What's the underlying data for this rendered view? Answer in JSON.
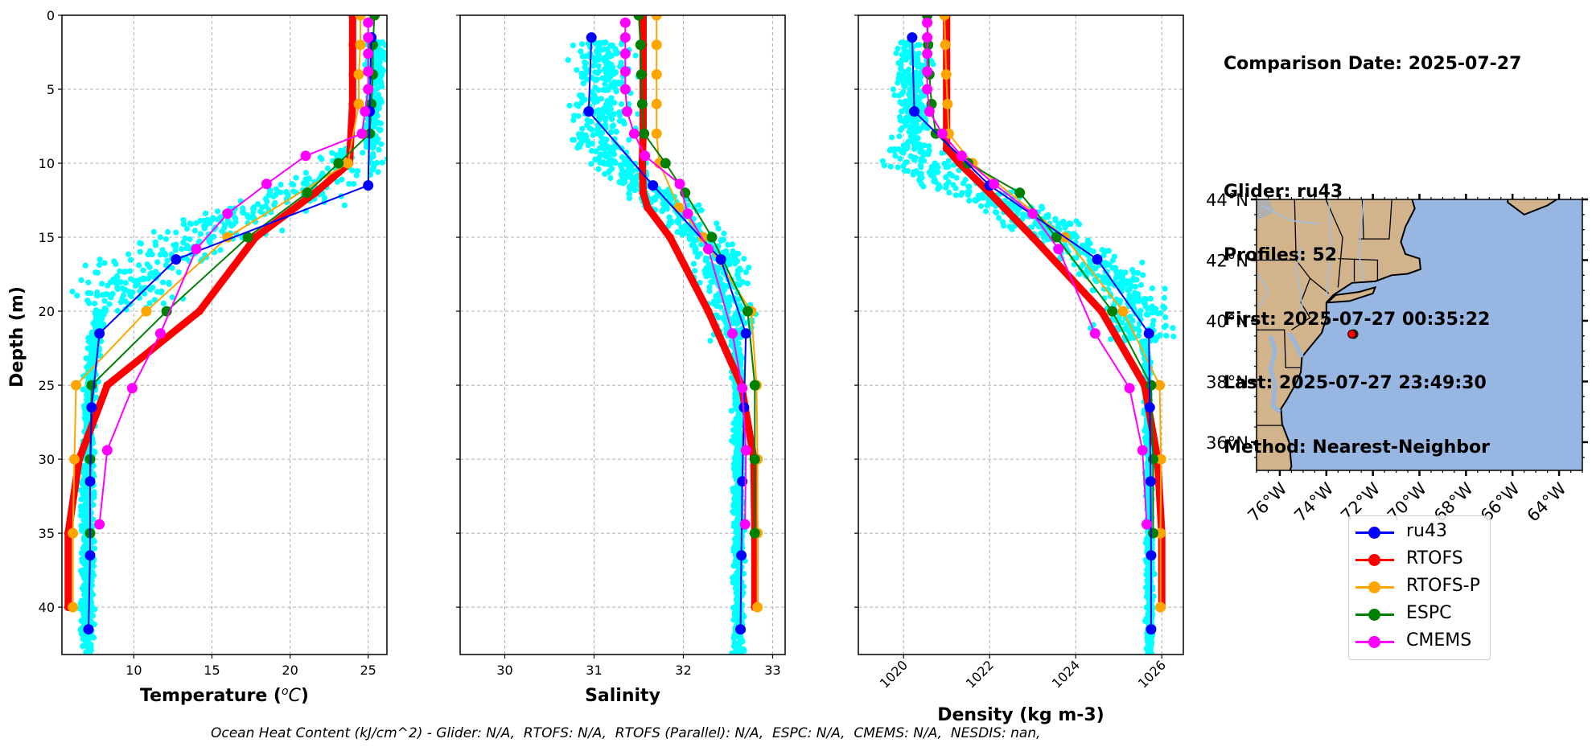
{
  "info_panel": {
    "comparison_date": "Comparison Date: 2025-07-27",
    "glider": "Glider: ru43",
    "profiles": "Profiles: 52",
    "first": "First: 2025-07-27 00:35:22",
    "last": "Last: 2025-07-27 23:49:30",
    "method": "Method: Nearest-Neighbor"
  },
  "footer": {
    "ohc_text": "Ocean Heat Content (kJ/cm^2) - Glider: N/A,  RTOFS: N/A,  RTOFS (Parallel): N/A,  ESPC: N/A,  CMEMS: N/A,  NESDIS: nan,"
  },
  "colors": {
    "ru43": "#0000ff",
    "RTOFS": "#ff0000",
    "RTOFS-P": "#ffa500",
    "ESPC": "#008000",
    "CMEMS": "#ff00ff",
    "glider_scatter": "#00ffff",
    "land": "#d2b48c",
    "ocean": "#97b6e1",
    "rivers": "#a0c0e8",
    "grid": "#b0b0b0"
  },
  "legend": [
    {
      "label": "ru43",
      "key": "ru43"
    },
    {
      "label": "RTOFS",
      "key": "RTOFS"
    },
    {
      "label": "RTOFS-P",
      "key": "RTOFS-P"
    },
    {
      "label": "ESPC",
      "key": "ESPC"
    },
    {
      "label": "CMEMS",
      "key": "CMEMS"
    }
  ],
  "chart_data": [
    {
      "type": "line",
      "title": "",
      "xlabel": "Temperature (°C)",
      "ylabel": "Depth (m)",
      "xlim": [
        5.4,
        26.2
      ],
      "ylim": [
        43.2,
        0
      ],
      "y_inverted": true,
      "grid": true,
      "xticks": [
        10,
        15,
        20,
        25
      ],
      "yticks": [
        0,
        5,
        10,
        15,
        20,
        25,
        30,
        35,
        40
      ],
      "series": [
        {
          "name": "ru43",
          "x": [
            25.2,
            25.1,
            25.0,
            12.7,
            7.8,
            7.3,
            7.2,
            7.2,
            7.1
          ],
          "y": [
            1.5,
            6.5,
            11.5,
            16.5,
            21.5,
            26.5,
            31.5,
            36.5,
            41.5
          ]
        },
        {
          "name": "RTOFS",
          "x": [
            24.0,
            24.0,
            24.0,
            24.0,
            23.8,
            21.6,
            17.8,
            14.2,
            8.3,
            6.5,
            5.8,
            5.8
          ],
          "y": [
            0,
            2,
            4,
            6,
            10,
            12,
            15,
            20,
            25,
            30,
            35,
            40
          ],
          "thick": true
        },
        {
          "name": "RTOFS-P",
          "x": [
            24.5,
            24.5,
            24.4,
            24.4,
            23.7,
            16.0,
            10.8,
            6.3,
            6.2,
            6.1,
            6.1
          ],
          "y": [
            0,
            2,
            4,
            6,
            10,
            15,
            20,
            25,
            30,
            35,
            40
          ]
        },
        {
          "name": "ESPC",
          "x": [
            25.4,
            25.3,
            25.3,
            25.2,
            25.1,
            23.1,
            21.1,
            17.3,
            12.1,
            7.3,
            7.2,
            7.2
          ],
          "y": [
            0,
            2,
            4,
            6,
            8,
            10,
            12,
            15,
            20,
            25,
            30,
            35
          ]
        },
        {
          "name": "CMEMS",
          "x": [
            25.0,
            25.0,
            25.0,
            25.0,
            25.0,
            24.8,
            24.6,
            21.0,
            18.5,
            16.0,
            14.0,
            11.7,
            9.9,
            8.3,
            7.8
          ],
          "y": [
            0.5,
            1.5,
            2.6,
            3.8,
            5.0,
            6.5,
            8.0,
            9.5,
            11.4,
            13.4,
            15.8,
            21.5,
            25.2,
            29.4,
            34.4
          ]
        }
      ],
      "glider_scatter": {
        "name": "ru43 profiles (cyan)",
        "count_note": "cloud of points following ru43 profile"
      }
    },
    {
      "type": "line",
      "title": "",
      "xlabel": "Salinity",
      "ylabel": "",
      "xlim": [
        29.5,
        33.14
      ],
      "ylim": [
        43.2,
        0
      ],
      "y_inverted": true,
      "grid": true,
      "xticks": [
        30,
        31,
        32,
        33
      ],
      "yticks": [
        0,
        5,
        10,
        15,
        20,
        25,
        30,
        35,
        40
      ],
      "series": [
        {
          "name": "ru43",
          "x": [
            30.97,
            30.94,
            31.66,
            32.42,
            32.7,
            32.68,
            32.66,
            32.65,
            32.64
          ],
          "y": [
            1.5,
            6.5,
            11.5,
            16.5,
            21.5,
            26.5,
            31.5,
            36.5,
            41.5
          ]
        },
        {
          "name": "RTOFS",
          "x": [
            31.55,
            31.55,
            31.55,
            31.55,
            31.55,
            31.54,
            31.55,
            31.6,
            31.85,
            32.28,
            32.65,
            32.79,
            32.8,
            32.8
          ],
          "y": [
            0,
            2,
            4,
            6,
            8,
            10,
            12,
            13,
            15,
            20,
            25,
            30,
            35,
            40
          ],
          "thick": true
        },
        {
          "name": "RTOFS-P",
          "x": [
            31.7,
            31.7,
            31.7,
            31.7,
            31.7,
            31.73,
            31.95,
            32.22,
            32.76,
            32.82,
            32.83,
            32.83,
            32.83
          ],
          "y": [
            0,
            2,
            4,
            6,
            8,
            10,
            13,
            15,
            20,
            25,
            30,
            35,
            40
          ]
        },
        {
          "name": "ESPC",
          "x": [
            31.5,
            31.52,
            31.53,
            31.54,
            31.56,
            31.8,
            32.02,
            32.32,
            32.72,
            32.8,
            32.8,
            32.8
          ],
          "y": [
            0,
            2,
            4,
            6,
            8,
            10,
            12,
            15,
            20,
            25,
            30,
            35
          ]
        },
        {
          "name": "CMEMS",
          "x": [
            31.35,
            31.35,
            31.35,
            31.35,
            31.35,
            31.37,
            31.45,
            31.57,
            31.96,
            32.05,
            32.28,
            32.55,
            32.66,
            32.7,
            32.69
          ],
          "y": [
            0.5,
            1.5,
            2.6,
            3.8,
            5.0,
            6.5,
            8.0,
            9.5,
            11.4,
            13.4,
            15.8,
            21.5,
            25.2,
            29.4,
            34.4
          ]
        }
      ]
    },
    {
      "type": "line",
      "title": "",
      "xlabel": "Density (kg m-3)",
      "ylabel": "",
      "xlim": [
        1018.95,
        1026.5
      ],
      "ylim": [
        43.2,
        0
      ],
      "y_inverted": true,
      "grid": true,
      "xticks": [
        1020,
        1022,
        1024,
        1026
      ],
      "xtick_rotation": 45,
      "yticks": [
        0,
        5,
        10,
        15,
        20,
        25,
        30,
        35,
        40
      ],
      "series": [
        {
          "name": "ru43",
          "x": [
            1020.2,
            1020.25,
            1022.0,
            1024.5,
            1025.7,
            1025.72,
            1025.74,
            1025.75,
            1025.75
          ],
          "y": [
            1.5,
            6.5,
            11.5,
            16.5,
            21.5,
            26.5,
            31.5,
            36.5,
            41.5
          ]
        },
        {
          "name": "RTOFS",
          "x": [
            1021.0,
            1021.0,
            1021.0,
            1021.0,
            1021.0,
            1021.0,
            1021.3,
            1022.0,
            1023.0,
            1024.6,
            1025.6,
            1025.9,
            1026.0,
            1026.0
          ],
          "y": [
            0,
            2,
            4,
            6,
            8,
            9,
            10,
            12,
            15,
            20,
            25,
            30,
            35,
            40
          ],
          "thick": true
        },
        {
          "name": "RTOFS-P",
          "x": [
            1020.95,
            1020.97,
            1020.99,
            1021.02,
            1021.05,
            1021.6,
            1023.75,
            1025.1,
            1025.95,
            1025.98,
            1025.97,
            1025.97
          ],
          "y": [
            0,
            2,
            4,
            6,
            8,
            10,
            15,
            20,
            25,
            30,
            35,
            40
          ]
        },
        {
          "name": "ESPC",
          "x": [
            1020.55,
            1020.57,
            1020.6,
            1020.65,
            1020.75,
            1021.5,
            1022.7,
            1023.55,
            1024.85,
            1025.75,
            1025.8,
            1025.8
          ],
          "y": [
            0,
            2,
            4,
            6,
            8,
            10,
            12,
            15,
            20,
            25,
            30,
            35
          ]
        },
        {
          "name": "CMEMS",
          "x": [
            1020.55,
            1020.55,
            1020.55,
            1020.55,
            1020.55,
            1020.6,
            1020.9,
            1021.35,
            1022.1,
            1023.0,
            1023.6,
            1024.45,
            1025.25,
            1025.55,
            1025.65
          ],
          "y": [
            0.5,
            1.5,
            2.6,
            3.8,
            5.0,
            6.5,
            8.0,
            9.5,
            11.4,
            13.4,
            15.8,
            21.5,
            25.2,
            29.4,
            34.4
          ]
        }
      ]
    }
  ],
  "map": {
    "lon_range": [
      -77.0,
      -63.0
    ],
    "lat_range": [
      35.07,
      44.0
    ],
    "lat_ticks": [
      "44°N",
      "42°N",
      "40°N",
      "38°N",
      "36°N"
    ],
    "lat_tick_values": [
      44,
      42,
      40,
      38,
      36
    ],
    "lon_ticks": [
      "76°W",
      "74°W",
      "72°W",
      "70°W",
      "68°W",
      "66°W",
      "64°W"
    ],
    "lon_tick_values": [
      -76,
      -74,
      -72,
      -70,
      -68,
      -66,
      -64
    ],
    "glider_position": {
      "lon": -72.9,
      "lat": 39.56
    }
  }
}
